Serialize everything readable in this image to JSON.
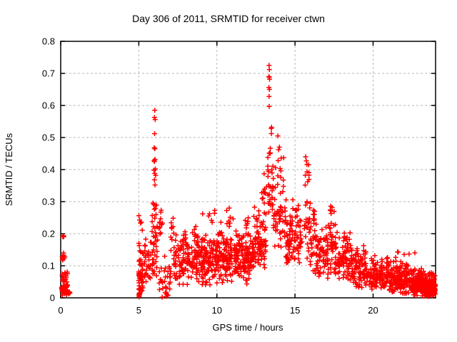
{
  "chart_data": {
    "type": "scatter",
    "title": "Day 306 of 2011, SRMTID for receiver ctwn",
    "xlabel": "GPS time / hours",
    "ylabel": "SRMTID / TECUs",
    "xlim": [
      0,
      24
    ],
    "ylim": [
      0,
      0.8
    ],
    "xticks": [
      {
        "v": 0,
        "label": "0"
      },
      {
        "v": 5,
        "label": "5"
      },
      {
        "v": 10,
        "label": "10"
      },
      {
        "v": 15,
        "label": "15"
      },
      {
        "v": 20,
        "label": "20"
      }
    ],
    "yticks": [
      {
        "v": 0.0,
        "label": "0"
      },
      {
        "v": 0.1,
        "label": "0.1"
      },
      {
        "v": 0.2,
        "label": "0.2"
      },
      {
        "v": 0.3,
        "label": "0.3"
      },
      {
        "v": 0.4,
        "label": "0.4"
      },
      {
        "v": 0.5,
        "label": "0.5"
      },
      {
        "v": 0.6,
        "label": "0.6"
      },
      {
        "v": 0.7,
        "label": "0.7"
      },
      {
        "v": 0.8,
        "label": "0.8"
      }
    ],
    "grid": true,
    "legend": "none",
    "marker": {
      "shape": "plus",
      "color": "#ff0000",
      "size": 7
    },
    "grid_color": "#b9b9b9",
    "axis_color": "#000000",
    "background_color": "#ffffff",
    "seed": 306,
    "peak_points": [
      [
        6.02,
        0.585
      ],
      [
        6.0,
        0.563
      ],
      [
        6.05,
        0.556
      ],
      [
        6.01,
        0.512
      ],
      [
        5.99,
        0.468
      ],
      [
        6.03,
        0.465
      ],
      [
        6.04,
        0.432
      ],
      [
        5.98,
        0.428
      ],
      [
        6.0,
        0.425
      ],
      [
        6.06,
        0.402
      ],
      [
        5.97,
        0.398
      ],
      [
        6.02,
        0.388
      ],
      [
        6.08,
        0.382
      ],
      [
        6.0,
        0.368
      ],
      [
        6.04,
        0.352
      ],
      [
        13.34,
        0.725
      ],
      [
        13.36,
        0.712
      ],
      [
        13.33,
        0.69
      ],
      [
        13.35,
        0.688
      ],
      [
        13.37,
        0.682
      ],
      [
        13.33,
        0.656
      ],
      [
        13.36,
        0.65
      ],
      [
        13.34,
        0.628
      ],
      [
        13.35,
        0.597
      ],
      [
        13.5,
        0.532
      ],
      [
        13.48,
        0.528
      ],
      [
        13.9,
        0.505
      ],
      [
        14.0,
        0.47
      ],
      [
        13.95,
        0.462
      ],
      [
        13.92,
        0.428
      ],
      [
        14.05,
        0.403
      ],
      [
        14.1,
        0.396
      ]
    ],
    "point_clusters": [
      {
        "x0": 0.05,
        "x1": 0.45,
        "n": 48,
        "ymin": 0.002,
        "ymode": 0.03,
        "ymax": 0.095
      },
      {
        "x0": 0.3,
        "x1": 0.6,
        "n": 8,
        "ymin": 0.003,
        "ymode": 0.012,
        "ymax": 0.035
      },
      {
        "x0": 0.08,
        "x1": 0.32,
        "n": 9,
        "ymin": 0.1,
        "ymode": 0.13,
        "ymax": 0.165
      },
      {
        "x0": 0.1,
        "x1": 0.25,
        "n": 3,
        "ymin": 0.185,
        "ymode": 0.195,
        "ymax": 0.205
      },
      {
        "x0": 4.95,
        "x1": 5.3,
        "n": 52,
        "ymin": 0.003,
        "ymode": 0.05,
        "ymax": 0.19
      },
      {
        "x0": 5.0,
        "x1": 5.25,
        "n": 5,
        "ymin": 0.2,
        "ymode": 0.23,
        "ymax": 0.27
      },
      {
        "x0": 5.0,
        "x1": 5.1,
        "n": 8,
        "ymin": 0.0,
        "ymode": 0.01,
        "ymax": 0.03
      },
      {
        "x0": 5.35,
        "x1": 5.8,
        "n": 30,
        "ymin": 0.02,
        "ymode": 0.08,
        "ymax": 0.2
      },
      {
        "x0": 5.85,
        "x1": 6.2,
        "n": 42,
        "ymin": 0.04,
        "ymode": 0.14,
        "ymax": 0.34
      },
      {
        "x0": 6.25,
        "x1": 6.55,
        "n": 12,
        "ymin": 0.14,
        "ymode": 0.22,
        "ymax": 0.315
      },
      {
        "x0": 6.3,
        "x1": 7.05,
        "n": 28,
        "ymin": 0.005,
        "ymode": 0.05,
        "ymax": 0.14
      },
      {
        "x0": 6.4,
        "x1": 7.0,
        "n": 6,
        "ymin": 0.0,
        "ymode": 0.01,
        "ymax": 0.025
      },
      {
        "x0": 7.05,
        "x1": 7.3,
        "n": 10,
        "ymin": 0.1,
        "ymode": 0.2,
        "ymax": 0.31
      },
      {
        "x0": 7.25,
        "x1": 8.5,
        "n": 95,
        "ymin": 0.03,
        "ymode": 0.11,
        "ymax": 0.225
      },
      {
        "x0": 8.5,
        "x1": 9.05,
        "n": 60,
        "ymin": 0.04,
        "ymode": 0.12,
        "ymax": 0.245
      },
      {
        "x0": 9.05,
        "x1": 12.4,
        "n": 340,
        "ymin": 0.035,
        "ymode": 0.12,
        "ymax": 0.215
      },
      {
        "x0": 9.05,
        "x1": 12.4,
        "n": 14,
        "ymin": 0.215,
        "ymode": 0.24,
        "ymax": 0.285
      },
      {
        "x0": 10.6,
        "x1": 10.8,
        "n": 7,
        "ymin": 0.17,
        "ymode": 0.23,
        "ymax": 0.29
      },
      {
        "x0": 11.85,
        "x1": 12.05,
        "n": 7,
        "ymin": 0.17,
        "ymode": 0.22,
        "ymax": 0.28
      },
      {
        "x0": 12.4,
        "x1": 13.15,
        "n": 75,
        "ymin": 0.07,
        "ymode": 0.16,
        "ymax": 0.3
      },
      {
        "x0": 12.85,
        "x1": 13.2,
        "n": 12,
        "ymin": 0.28,
        "ymode": 0.33,
        "ymax": 0.42
      },
      {
        "x0": 13.25,
        "x1": 13.6,
        "n": 32,
        "ymin": 0.18,
        "ymode": 0.3,
        "ymax": 0.52
      },
      {
        "x0": 13.6,
        "x1": 14.3,
        "n": 48,
        "ymin": 0.14,
        "ymode": 0.25,
        "ymax": 0.46
      },
      {
        "x0": 14.3,
        "x1": 15.45,
        "n": 100,
        "ymin": 0.09,
        "ymode": 0.18,
        "ymax": 0.315
      },
      {
        "x0": 15.6,
        "x1": 15.95,
        "n": 22,
        "ymin": 0.12,
        "ymode": 0.22,
        "ymax": 0.34
      },
      {
        "x0": 15.65,
        "x1": 15.9,
        "n": 11,
        "ymin": 0.34,
        "ymode": 0.4,
        "ymax": 0.458
      },
      {
        "x0": 15.95,
        "x1": 16.35,
        "n": 10,
        "ymin": 0.21,
        "ymode": 0.25,
        "ymax": 0.305
      },
      {
        "x0": 15.95,
        "x1": 17.15,
        "n": 95,
        "ymin": 0.055,
        "ymode": 0.13,
        "ymax": 0.245
      },
      {
        "x0": 17.2,
        "x1": 17.6,
        "n": 42,
        "ymin": 0.07,
        "ymode": 0.16,
        "ymax": 0.325
      },
      {
        "x0": 17.6,
        "x1": 18.6,
        "n": 85,
        "ymin": 0.045,
        "ymode": 0.105,
        "ymax": 0.215
      },
      {
        "x0": 18.6,
        "x1": 19.6,
        "n": 95,
        "ymin": 0.025,
        "ymode": 0.08,
        "ymax": 0.175
      },
      {
        "x0": 19.6,
        "x1": 21.0,
        "n": 130,
        "ymin": 0.015,
        "ymode": 0.06,
        "ymax": 0.135
      },
      {
        "x0": 21.0,
        "x1": 22.5,
        "n": 170,
        "ymin": 0.008,
        "ymode": 0.05,
        "ymax": 0.122
      },
      {
        "x0": 21.3,
        "x1": 23.0,
        "n": 6,
        "ymin": 0.125,
        "ymode": 0.135,
        "ymax": 0.152
      },
      {
        "x0": 22.5,
        "x1": 23.3,
        "n": 130,
        "ymin": 0.004,
        "ymode": 0.035,
        "ymax": 0.095
      },
      {
        "x0": 23.3,
        "x1": 24.0,
        "n": 150,
        "ymin": 0.002,
        "ymode": 0.025,
        "ymax": 0.08
      },
      {
        "x0": 23.5,
        "x1": 24.0,
        "n": 20,
        "ymin": 0.0,
        "ymode": 0.01,
        "ymax": 0.03
      }
    ]
  }
}
